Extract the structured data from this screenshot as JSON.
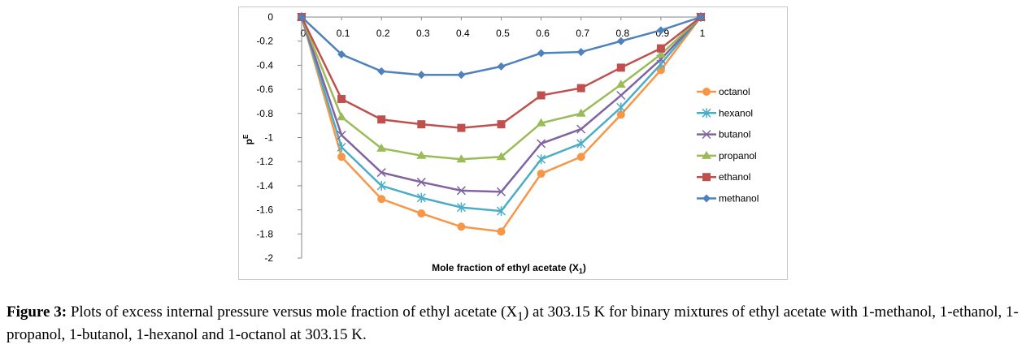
{
  "chart_data": {
    "type": "line",
    "xlabel": "Mole fraction of ethyl acetate (X",
    "xlabel_sub": "1",
    "xlabel_end": ")",
    "ylabel": "p",
    "ylabel_sup": "E",
    "xlim": [
      0,
      1
    ],
    "ylim": [
      -2,
      0
    ],
    "x_ticks": [
      "0",
      "0.1",
      "0.2",
      "0.3",
      "0.4",
      "0.5",
      "0.6",
      "0.7",
      "0.8",
      "0.9",
      "1"
    ],
    "y_ticks": [
      "0",
      "-0.2",
      "-0.4",
      "-0.6",
      "-0.8",
      "-1",
      "-1.2",
      "-1.4",
      "-1.6",
      "-1.8",
      "-2"
    ],
    "legend_position": "right",
    "x": [
      0,
      0.1,
      0.2,
      0.3,
      0.4,
      0.5,
      0.6,
      0.7,
      0.8,
      0.9,
      1
    ],
    "series": [
      {
        "name": "octanol",
        "color": "#f79646",
        "marker": "circle",
        "values": [
          0,
          -1.16,
          -1.51,
          -1.63,
          -1.74,
          -1.78,
          -1.3,
          -1.16,
          -0.81,
          -0.44,
          0
        ]
      },
      {
        "name": "hexanol",
        "color": "#4bacc6",
        "marker": "star",
        "values": [
          0,
          -1.08,
          -1.4,
          -1.5,
          -1.58,
          -1.61,
          -1.18,
          -1.05,
          -0.75,
          -0.39,
          0
        ]
      },
      {
        "name": "butanol",
        "color": "#8064a2",
        "marker": "x",
        "values": [
          0,
          -0.98,
          -1.29,
          -1.37,
          -1.44,
          -1.45,
          -1.05,
          -0.93,
          -0.65,
          -0.35,
          0
        ]
      },
      {
        "name": "propanol",
        "color": "#9bbb59",
        "marker": "triangle",
        "values": [
          0,
          -0.83,
          -1.09,
          -1.15,
          -1.18,
          -1.16,
          -0.88,
          -0.8,
          -0.56,
          -0.31,
          0
        ]
      },
      {
        "name": "ethanol",
        "color": "#c0504d",
        "marker": "square",
        "values": [
          0,
          -0.68,
          -0.85,
          -0.89,
          -0.92,
          -0.89,
          -0.65,
          -0.59,
          -0.42,
          -0.26,
          0
        ]
      },
      {
        "name": "methanol",
        "color": "#4f81bd",
        "marker": "diamond",
        "values": [
          0,
          -0.31,
          -0.45,
          -0.48,
          -0.48,
          -0.41,
          -0.3,
          -0.29,
          -0.2,
          -0.11,
          0
        ]
      }
    ]
  },
  "caption": {
    "label": "Figure 3:",
    "text": "  Plots of excess internal pressure versus mole fraction of ethyl acetate (X",
    "sub": "1",
    "text_end": ") at 303.15 K for binary mixtures of ethyl acetate with 1-methanol, 1-ethanol, 1-propanol, 1-butanol, 1-hexanol and 1-octanol at 303.15 K."
  }
}
